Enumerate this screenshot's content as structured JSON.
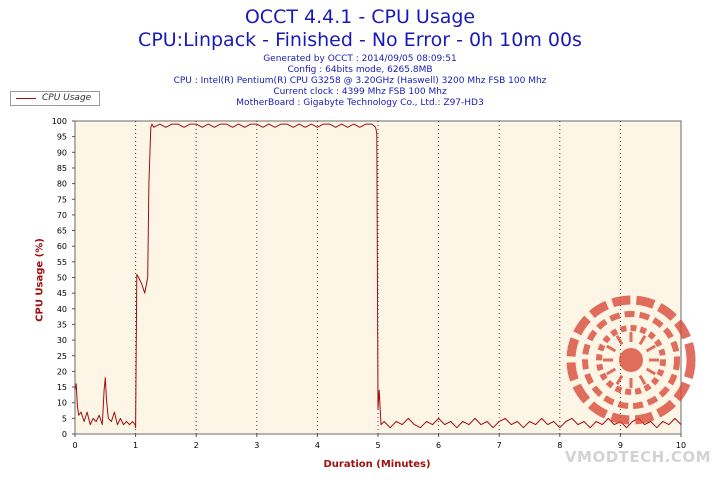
{
  "header": {
    "title": "OCCT 4.4.1 - CPU Usage",
    "subtitle": "CPU:Linpack - Finished - No Error - 0h 10m 00s",
    "info_lines": [
      "Generated by OCCT : 2014/09/05 08:09:51",
      "Config : 64bits mode, 6265.8MB",
      "CPU : Intel(R) Pentium(R) CPU G3258 @ 3.20GHz (Haswell) 3200 Mhz FSB 100 Mhz",
      "Current clock : 4399 Mhz FSB 100 Mhz",
      "MotherBoard : Gigabyte Technology Co., Ltd.: Z97-HD3"
    ]
  },
  "watermark": {
    "text": "VMODTECH.COM",
    "color": "#d94a3a"
  },
  "colors": {
    "plot_bg": "#fdf5e6",
    "line": "#a01010",
    "title": "#1a1ab8",
    "axis_label": "#a01010"
  },
  "chart_data": {
    "type": "line",
    "title": "OCCT 4.4.1 - CPU Usage",
    "xlabel": "Duration (Minutes)",
    "ylabel": "CPU Usage (%)",
    "xlim": [
      0,
      10
    ],
    "ylim": [
      0,
      100
    ],
    "x_ticks": [
      "0",
      "1",
      "2",
      "3",
      "4",
      "5",
      "6",
      "7",
      "8",
      "9",
      "10"
    ],
    "y_ticks": [
      "0",
      "5",
      "10",
      "15",
      "20",
      "25",
      "30",
      "35",
      "40",
      "45",
      "50",
      "55",
      "60",
      "65",
      "70",
      "75",
      "80",
      "85",
      "90",
      "95",
      "100"
    ],
    "grid": "vertical dotted",
    "legend": "top-left",
    "series": [
      {
        "name": "CPU Usage",
        "color": "#a01010",
        "x": [
          0,
          0.02,
          0.04,
          0.06,
          0.1,
          0.15,
          0.2,
          0.25,
          0.3,
          0.35,
          0.4,
          0.45,
          0.48,
          0.5,
          0.52,
          0.55,
          0.6,
          0.65,
          0.7,
          0.75,
          0.8,
          0.85,
          0.9,
          0.95,
          0.99,
          1.0,
          1.02,
          1.05,
          1.1,
          1.15,
          1.2,
          1.22,
          1.25,
          1.27,
          1.3,
          1.4,
          1.5,
          1.6,
          1.7,
          1.8,
          1.9,
          2.0,
          2.1,
          2.2,
          2.3,
          2.4,
          2.5,
          2.6,
          2.7,
          2.8,
          2.9,
          3.0,
          3.1,
          3.2,
          3.3,
          3.4,
          3.5,
          3.6,
          3.7,
          3.8,
          3.9,
          4.0,
          4.1,
          4.2,
          4.3,
          4.4,
          4.5,
          4.6,
          4.7,
          4.8,
          4.9,
          4.96,
          4.98,
          5.0,
          5.02,
          5.05,
          5.1,
          5.2,
          5.3,
          5.4,
          5.5,
          5.6,
          5.7,
          5.8,
          5.9,
          6.0,
          6.1,
          6.2,
          6.3,
          6.4,
          6.5,
          6.6,
          6.7,
          6.8,
          6.9,
          7.0,
          7.1,
          7.2,
          7.3,
          7.4,
          7.5,
          7.6,
          7.7,
          7.8,
          7.9,
          8.0,
          8.1,
          8.2,
          8.3,
          8.4,
          8.5,
          8.6,
          8.7,
          8.8,
          8.9,
          9.0,
          9.1,
          9.2,
          9.3,
          9.4,
          9.5,
          9.6,
          9.7,
          9.8,
          9.9,
          10.0
        ],
        "y": [
          14,
          16,
          9,
          6,
          7,
          4,
          7,
          3,
          5,
          4,
          6,
          3,
          14,
          18,
          11,
          5,
          4,
          7,
          3,
          5,
          3,
          4,
          3,
          4,
          3,
          2,
          51,
          50,
          48,
          45,
          50,
          80,
          98,
          99,
          98,
          99,
          98,
          99,
          99,
          98,
          99,
          99,
          98,
          99,
          98,
          99,
          99,
          98,
          99,
          98,
          99,
          99,
          98,
          99,
          98,
          99,
          99,
          98,
          99,
          98,
          99,
          98,
          99,
          99,
          98,
          99,
          98,
          99,
          98,
          99,
          99,
          98,
          96,
          8,
          14,
          3,
          4,
          2,
          4,
          3,
          5,
          3,
          2,
          4,
          3,
          5,
          3,
          4,
          2,
          4,
          3,
          5,
          3,
          4,
          2,
          4,
          5,
          3,
          4,
          2,
          4,
          3,
          5,
          3,
          4,
          2,
          4,
          5,
          3,
          4,
          2,
          4,
          3,
          5,
          3,
          4,
          2,
          4,
          5,
          3,
          4,
          2,
          4,
          3,
          5,
          3
        ]
      }
    ]
  }
}
